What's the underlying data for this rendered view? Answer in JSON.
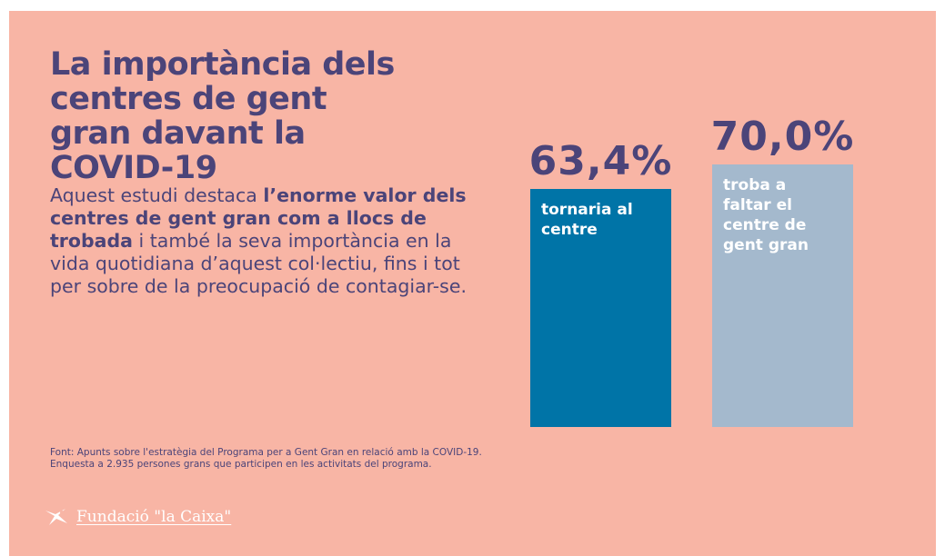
{
  "chart_data": {
    "type": "bar",
    "title": "La importància dels centres de gent gran davant la COVID-19",
    "body": [
      "Aquest estudi destaca ",
      "l’enorme valor dels centres de gent gran com a llocs de trobada",
      " i també la seva importància en la vida quotidiana d’aquest col·lectiu, fins i tot per sobre de la preocupació de contagiar-se."
    ],
    "source": "Font: Apunts sobre l'estratègia del Programa per a Gent Gran en relació amb la COVID-19. Enquesta a 2.935 persones grans que participen en les activitats del programa.",
    "brand": "Fundació \"la Caixa\"",
    "categories": [
      "tornaria al centre",
      "troba a faltar el centre de gent gran"
    ],
    "values": [
      63.4,
      70.0
    ],
    "value_labels": [
      "63,4%",
      "70,0%"
    ],
    "colors": [
      "#0074a7",
      "#a4b9cd"
    ],
    "ylim": [
      0,
      70
    ]
  }
}
